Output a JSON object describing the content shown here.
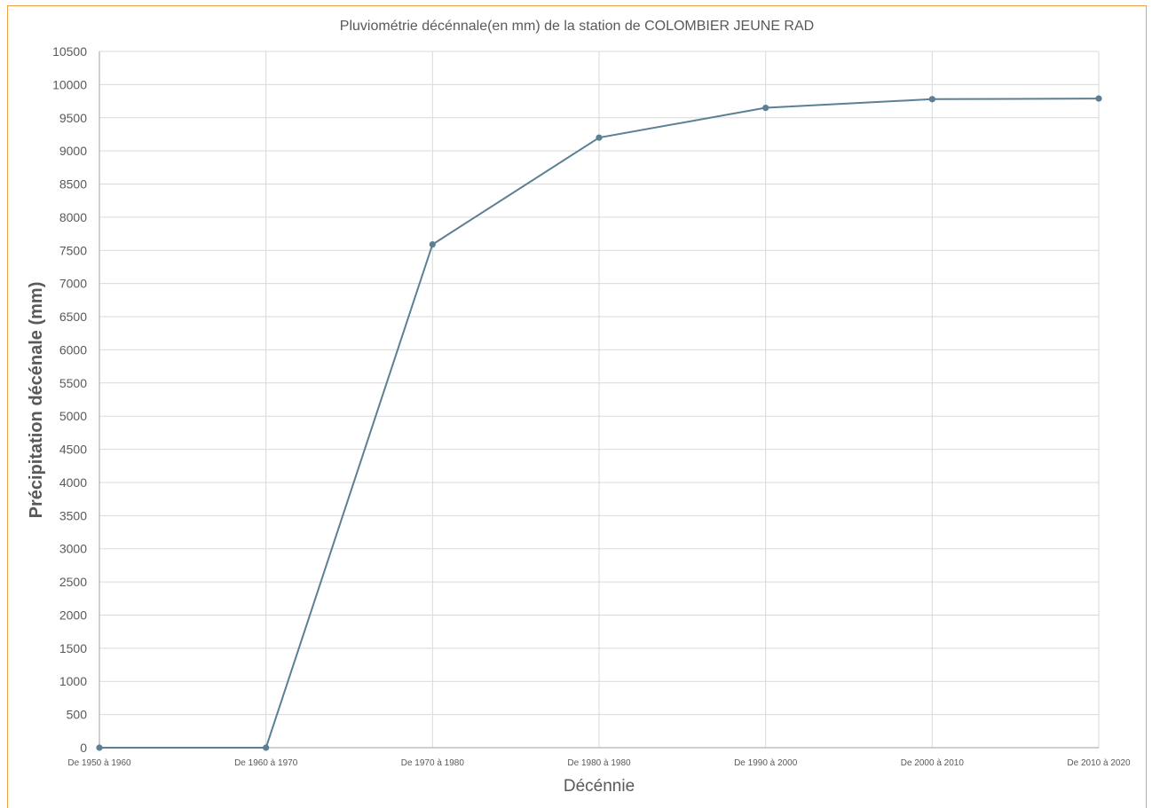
{
  "chart_data": {
    "type": "line",
    "title": "Pluviométrie décénnale(en mm) de la station de COLOMBIER JEUNE RAD",
    "xlabel": "Décénnie",
    "ylabel": "Précipitation décénale (mm)",
    "categories": [
      "De 1950 à 1960",
      "De 1960 à 1970",
      "De 1970 à 1980",
      "De 1980 à 1980",
      "De 1990 à 2000",
      "De 2000 à 2010",
      "De 2010 à 2020"
    ],
    "series": [
      {
        "values": [
          0,
          0,
          7590,
          9200,
          9650,
          9780,
          9790
        ]
      }
    ],
    "ylim": [
      0,
      10500
    ],
    "ytick_step": 500,
    "grid": true,
    "legend": "none",
    "colors": {
      "series": "#5b7f93",
      "grid": "#d9d9d9",
      "text": "#595959",
      "frame": "#f0a04b"
    }
  }
}
